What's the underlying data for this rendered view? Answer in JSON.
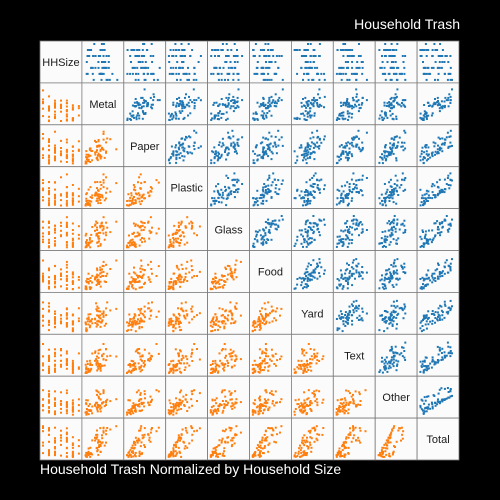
{
  "chart_data": {
    "type": "scatter",
    "title": "Household Trash",
    "subtitle": "Household Trash Normalized by Household Size",
    "variables": [
      "HHSize",
      "Metal",
      "Paper",
      "Plastic",
      "Glass",
      "Food",
      "Yard",
      "Text",
      "Other",
      "Total"
    ],
    "upper_triangle": "raw household trash vs. variable",
    "lower_triangle": "household trash normalized by household size",
    "point_colors": {
      "upper": "#1f77b4",
      "lower": "#ff7f0e"
    },
    "n_points": 62,
    "point_shape": "small square",
    "cell_background": "#fbfbfb",
    "grid": false,
    "legend": "none"
  }
}
